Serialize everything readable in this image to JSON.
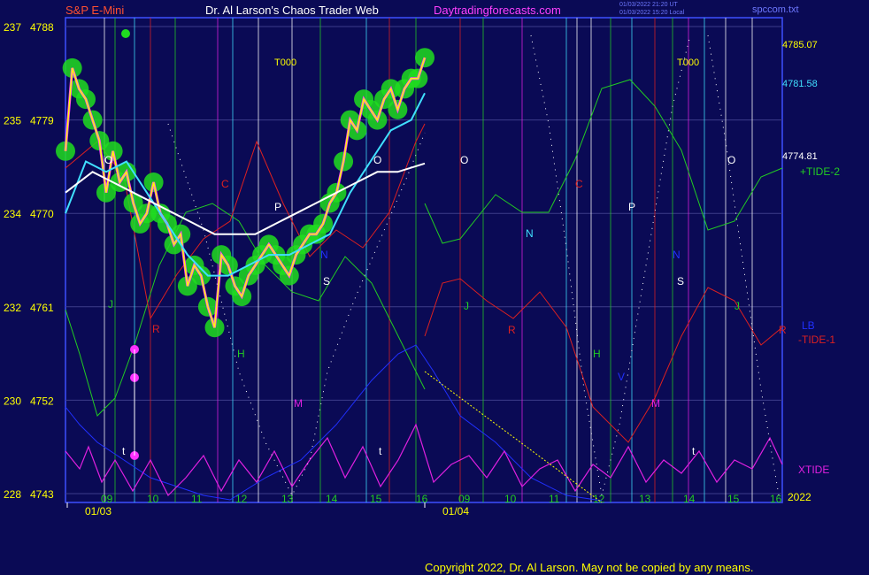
{
  "header": {
    "instrument": "S&P E-Mini",
    "title": "Dr. Al Larson's Chaos Trader Web",
    "site": "Daytradingforecasts.com",
    "stamp_line1": "01/03/2022 21:20 UT",
    "stamp_line2": "01/03/2022 15:20 Local",
    "file_tag": "spccom.txt"
  },
  "colors": {
    "background": "#0a0a55",
    "frame": "#3c50ff",
    "price": "#ffff00",
    "ma_fast": "#40e0ff",
    "ma_slow": "#ffffff",
    "green_highlight": "#20dd20",
    "tide2": "#22cc22",
    "tide1": "#dd2020",
    "lb": "#2030ff",
    "xtide": "#e020e0",
    "pink_marker": "#ff30ff"
  },
  "chart_data": {
    "type": "line",
    "y_axis_left": {
      "tick_labels_outer": [
        "237",
        "235",
        "234",
        "232",
        "230",
        "228"
      ],
      "tick_labels_inner": [
        "4788",
        "4779",
        "4770",
        "4761",
        "4752",
        "4743"
      ],
      "range": [
        4743,
        4788
      ]
    },
    "x_hour_labels": [
      "09",
      "10",
      "11",
      "12",
      "13",
      "14",
      "15",
      "16",
      "09",
      "10",
      "11",
      "12",
      "13",
      "14",
      "15",
      "16"
    ],
    "date_labels": [
      "01/03",
      "01/04"
    ],
    "year_label": "2022",
    "right_value_labels": [
      "4785.07",
      "4781.58",
      "4774.81"
    ],
    "series_labels": [
      "+TIDE-2",
      "LB",
      "-TIDE-1",
      "XTIDE"
    ],
    "cycle_markers": [
      {
        "label": "T000",
        "x_hour": "12.8"
      },
      {
        "label": "T000",
        "x_hour": "12.7b"
      }
    ],
    "timing_letters": [
      "O",
      "J",
      "R",
      "C",
      "H",
      "M",
      "P",
      "S",
      "O",
      "N",
      "O",
      "J",
      "R",
      "C",
      "H",
      "M",
      "P",
      "S",
      "O",
      "J",
      "R",
      "V",
      "t",
      "t",
      "t",
      "N",
      "N"
    ],
    "series": [
      {
        "name": "price",
        "points": [
          [
            9.0,
            4776
          ],
          [
            9.1,
            4784
          ],
          [
            9.2,
            4782
          ],
          [
            9.3,
            4781
          ],
          [
            9.4,
            4779
          ],
          [
            9.5,
            4777
          ],
          [
            9.6,
            4772
          ],
          [
            9.7,
            4776
          ],
          [
            9.8,
            4773
          ],
          [
            9.9,
            4774
          ],
          [
            10.0,
            4771
          ],
          [
            10.1,
            4769
          ],
          [
            10.2,
            4770
          ],
          [
            10.3,
            4773
          ],
          [
            10.4,
            4770
          ],
          [
            10.5,
            4769
          ],
          [
            10.6,
            4767
          ],
          [
            10.7,
            4768
          ],
          [
            10.8,
            4763
          ],
          [
            10.9,
            4765
          ],
          [
            11.0,
            4764
          ],
          [
            11.1,
            4761
          ],
          [
            11.2,
            4759
          ],
          [
            11.3,
            4766
          ],
          [
            11.4,
            4765
          ],
          [
            11.5,
            4763
          ],
          [
            11.6,
            4762
          ],
          [
            11.7,
            4764
          ],
          [
            11.8,
            4765
          ],
          [
            11.9,
            4766
          ],
          [
            12.0,
            4767
          ],
          [
            12.1,
            4766
          ],
          [
            12.2,
            4765
          ],
          [
            12.3,
            4764
          ],
          [
            12.4,
            4766
          ],
          [
            12.5,
            4767
          ],
          [
            12.6,
            4768
          ],
          [
            12.7,
            4768
          ],
          [
            12.8,
            4769
          ],
          [
            12.9,
            4771
          ],
          [
            13.0,
            4772
          ],
          [
            13.1,
            4775
          ],
          [
            13.2,
            4779
          ],
          [
            13.3,
            4778
          ],
          [
            13.4,
            4781
          ],
          [
            13.5,
            4780
          ],
          [
            13.6,
            4779
          ],
          [
            13.7,
            4781
          ],
          [
            13.8,
            4782
          ],
          [
            13.9,
            4780
          ],
          [
            14.0,
            4782
          ],
          [
            14.1,
            4783
          ],
          [
            14.2,
            4783
          ],
          [
            14.3,
            4785
          ]
        ]
      },
      {
        "name": "ma_fast",
        "points": [
          [
            9.0,
            4770
          ],
          [
            9.3,
            4775
          ],
          [
            9.6,
            4774
          ],
          [
            9.9,
            4775
          ],
          [
            10.2,
            4772
          ],
          [
            10.5,
            4769
          ],
          [
            10.8,
            4766
          ],
          [
            11.1,
            4764
          ],
          [
            11.4,
            4764
          ],
          [
            11.7,
            4765
          ],
          [
            12.0,
            4766
          ],
          [
            12.3,
            4766
          ],
          [
            12.6,
            4767
          ],
          [
            12.9,
            4768
          ],
          [
            13.2,
            4772
          ],
          [
            13.5,
            4775
          ],
          [
            13.8,
            4778
          ],
          [
            14.1,
            4779
          ],
          [
            14.3,
            4781.58
          ]
        ]
      },
      {
        "name": "ma_slow",
        "points": [
          [
            9.0,
            4772
          ],
          [
            9.4,
            4774
          ],
          [
            9.7,
            4773
          ],
          [
            10.0,
            4772
          ],
          [
            10.3,
            4771
          ],
          [
            10.6,
            4770
          ],
          [
            10.9,
            4769
          ],
          [
            11.2,
            4768
          ],
          [
            11.5,
            4768
          ],
          [
            11.8,
            4768
          ],
          [
            12.1,
            4769
          ],
          [
            12.4,
            4770
          ],
          [
            12.7,
            4771
          ],
          [
            13.0,
            4772
          ],
          [
            13.3,
            4773
          ],
          [
            13.6,
            4774
          ],
          [
            13.9,
            4774
          ],
          [
            14.3,
            4774.81
          ]
        ]
      }
    ],
    "grid": true
  },
  "footer": {
    "copyright": "Copyright 2022, Dr. Al Larson. May not be copied by any means."
  }
}
